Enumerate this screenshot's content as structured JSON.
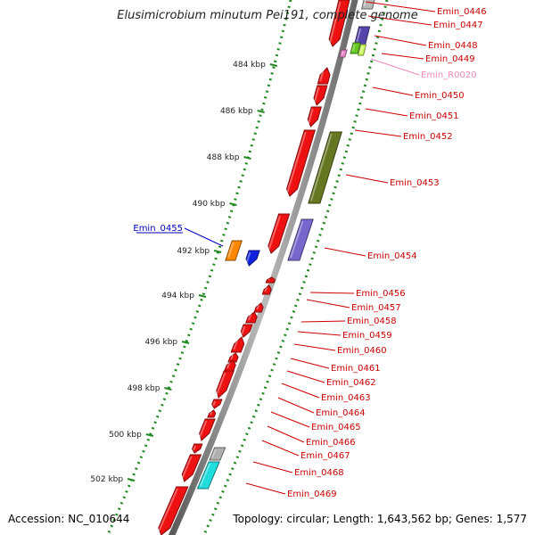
{
  "title": "Elusimicrobium minutum Pei191, complete genome",
  "footer": {
    "accession": "Accession: NC_010644",
    "summary": "Topology: circular; Length: 1,643,562 bp; Genes: 1,577"
  },
  "colors": {
    "backbone": "#888888",
    "dots": "#228822",
    "gene_red": "#ee1111",
    "label_red": "#cc0000",
    "label_blue": "#0000bb",
    "label_pink": "#ee88bb"
  },
  "axis": {
    "ticks": [
      "484 kbp",
      "486 kbp",
      "488 kbp",
      "490 kbp",
      "492 kbp",
      "494 kbp",
      "496 kbp",
      "498 kbp",
      "500 kbp",
      "502 kbp"
    ]
  },
  "genes": [
    {
      "label": "Emin_0446",
      "color": "#cc0000"
    },
    {
      "label": "Emin_0447",
      "color": "#cc0000"
    },
    {
      "label": "Emin_0448",
      "color": "#cc0000"
    },
    {
      "label": "Emin_0449",
      "color": "#cc0000"
    },
    {
      "label": "Emin_R0020",
      "color": "#ee88bb"
    },
    {
      "label": "Emin_0450",
      "color": "#cc0000"
    },
    {
      "label": "Emin_0451",
      "color": "#cc0000"
    },
    {
      "label": "Emin_0452",
      "color": "#cc0000"
    },
    {
      "label": "Emin_0453",
      "color": "#cc0000"
    },
    {
      "label": "Emin_0454",
      "color": "#cc0000"
    },
    {
      "label": "Emin_0455",
      "color": "#0000bb"
    },
    {
      "label": "Emin_0456",
      "color": "#cc0000"
    },
    {
      "label": "Emin_0457",
      "color": "#cc0000"
    },
    {
      "label": "Emin_0458",
      "color": "#cc0000"
    },
    {
      "label": "Emin_0459",
      "color": "#cc0000"
    },
    {
      "label": "Emin_0460",
      "color": "#cc0000"
    },
    {
      "label": "Emin_0461",
      "color": "#cc0000"
    },
    {
      "label": "Emin_0462",
      "color": "#cc0000"
    },
    {
      "label": "Emin_0463",
      "color": "#cc0000"
    },
    {
      "label": "Emin_0464",
      "color": "#cc0000"
    },
    {
      "label": "Emin_0465",
      "color": "#cc0000"
    },
    {
      "label": "Emin_0466",
      "color": "#cc0000"
    },
    {
      "label": "Emin_0467",
      "color": "#cc0000"
    },
    {
      "label": "Emin_0468",
      "color": "#cc0000"
    },
    {
      "label": "Emin_0469",
      "color": "#cc0000"
    }
  ]
}
